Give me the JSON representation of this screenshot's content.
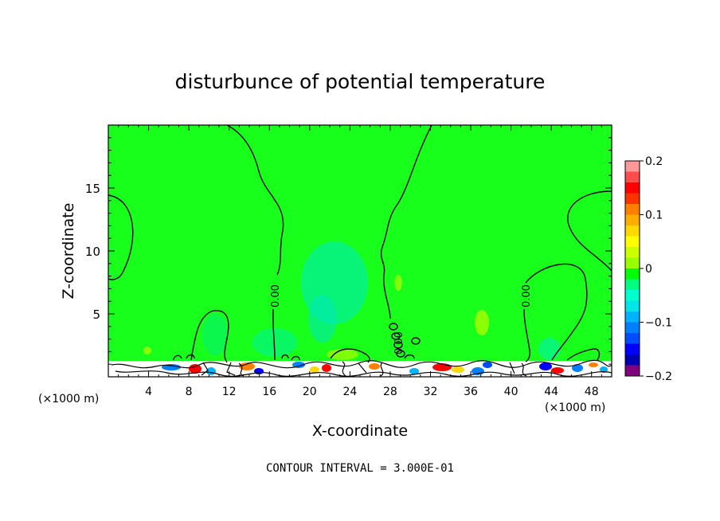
{
  "chart_data": {
    "type": "heatmap",
    "title": "disturbunce of potential temperature",
    "xlabel": "X-coordinate",
    "ylabel": "Z-coordinate",
    "x_unit": "(×1000 m)",
    "x_unit_right": "(×1000 m)",
    "xlim": [
      0,
      50
    ],
    "ylim": [
      0,
      20
    ],
    "x_ticks": [
      4,
      8,
      12,
      16,
      20,
      24,
      28,
      32,
      36,
      40,
      44,
      48
    ],
    "y_ticks": [
      5,
      10,
      15
    ],
    "colorbar": {
      "range": [
        -0.2,
        0.2
      ],
      "tick_labels": [
        "0.2",
        "0.1",
        "0",
        "−0.1",
        "−0.2"
      ],
      "colors": [
        "#ff9999",
        "#ff4d4d",
        "#ff0000",
        "#ff3300",
        "#ff7f00",
        "#ffae00",
        "#ffd900",
        "#ffff00",
        "#ccff00",
        "#99ff00",
        "#00ff00",
        "#00ff7f",
        "#00ffcc",
        "#00e5e5",
        "#00b3ff",
        "#0080ff",
        "#004dff",
        "#0000ff",
        "#0000b3",
        "#800080"
      ]
    },
    "contour_label": "0.00",
    "contour_interval_text": "CONTOUR INTERVAL = 3.000E-01",
    "field_description_values": {
      "background": 0.0,
      "central_column_min": -0.04,
      "lower_band": "mixed -0.2 to 0.2"
    }
  }
}
